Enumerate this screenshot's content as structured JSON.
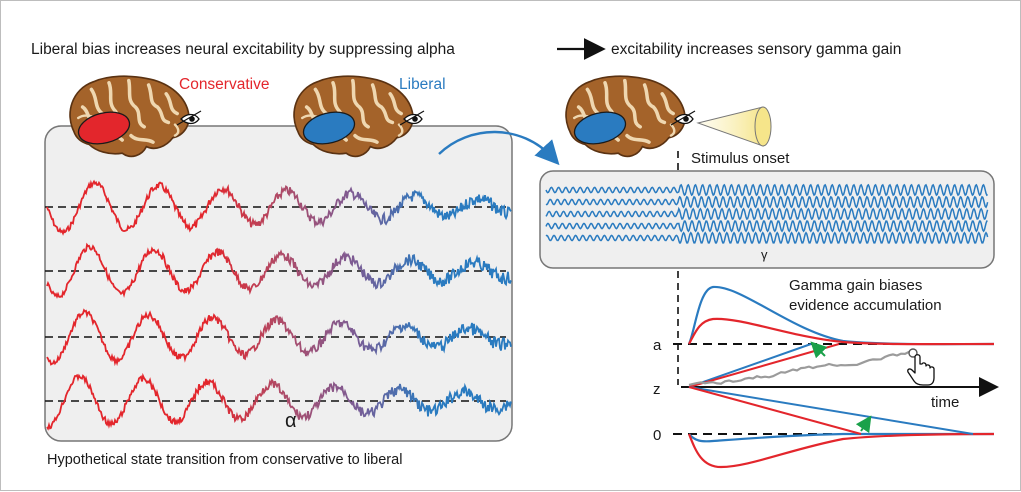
{
  "header": {
    "part1": "Liberal bias increases neural excitability by suppressing alpha",
    "part2": "excitability increases sensory gamma gain"
  },
  "state_labels": {
    "conservative": "Conservative",
    "liberal": "Liberal"
  },
  "alpha_panel": {
    "symbol": "α",
    "caption": "Hypothetical state transition from conservative to liberal"
  },
  "gamma_panel": {
    "onset_label": "Stimulus onset",
    "symbol": "γ"
  },
  "accumulation": {
    "title_line1": "Gamma gain biases",
    "title_line2": "evidence accumulation",
    "bound_upper": "a",
    "start_point": "z",
    "bound_lower": "0",
    "time_label": "time"
  },
  "colors": {
    "conservative": "#e3262c",
    "liberal": "#2a7bc0",
    "transition": "#8a5a8f",
    "panel_fill": "#efefef",
    "panel_stroke": "#777777",
    "brain_base": "#a4632a",
    "brain_sulci": "#efd7b0",
    "drift_arrow": "#1aa14a",
    "evidence_trace": "#9b9b9b"
  }
}
